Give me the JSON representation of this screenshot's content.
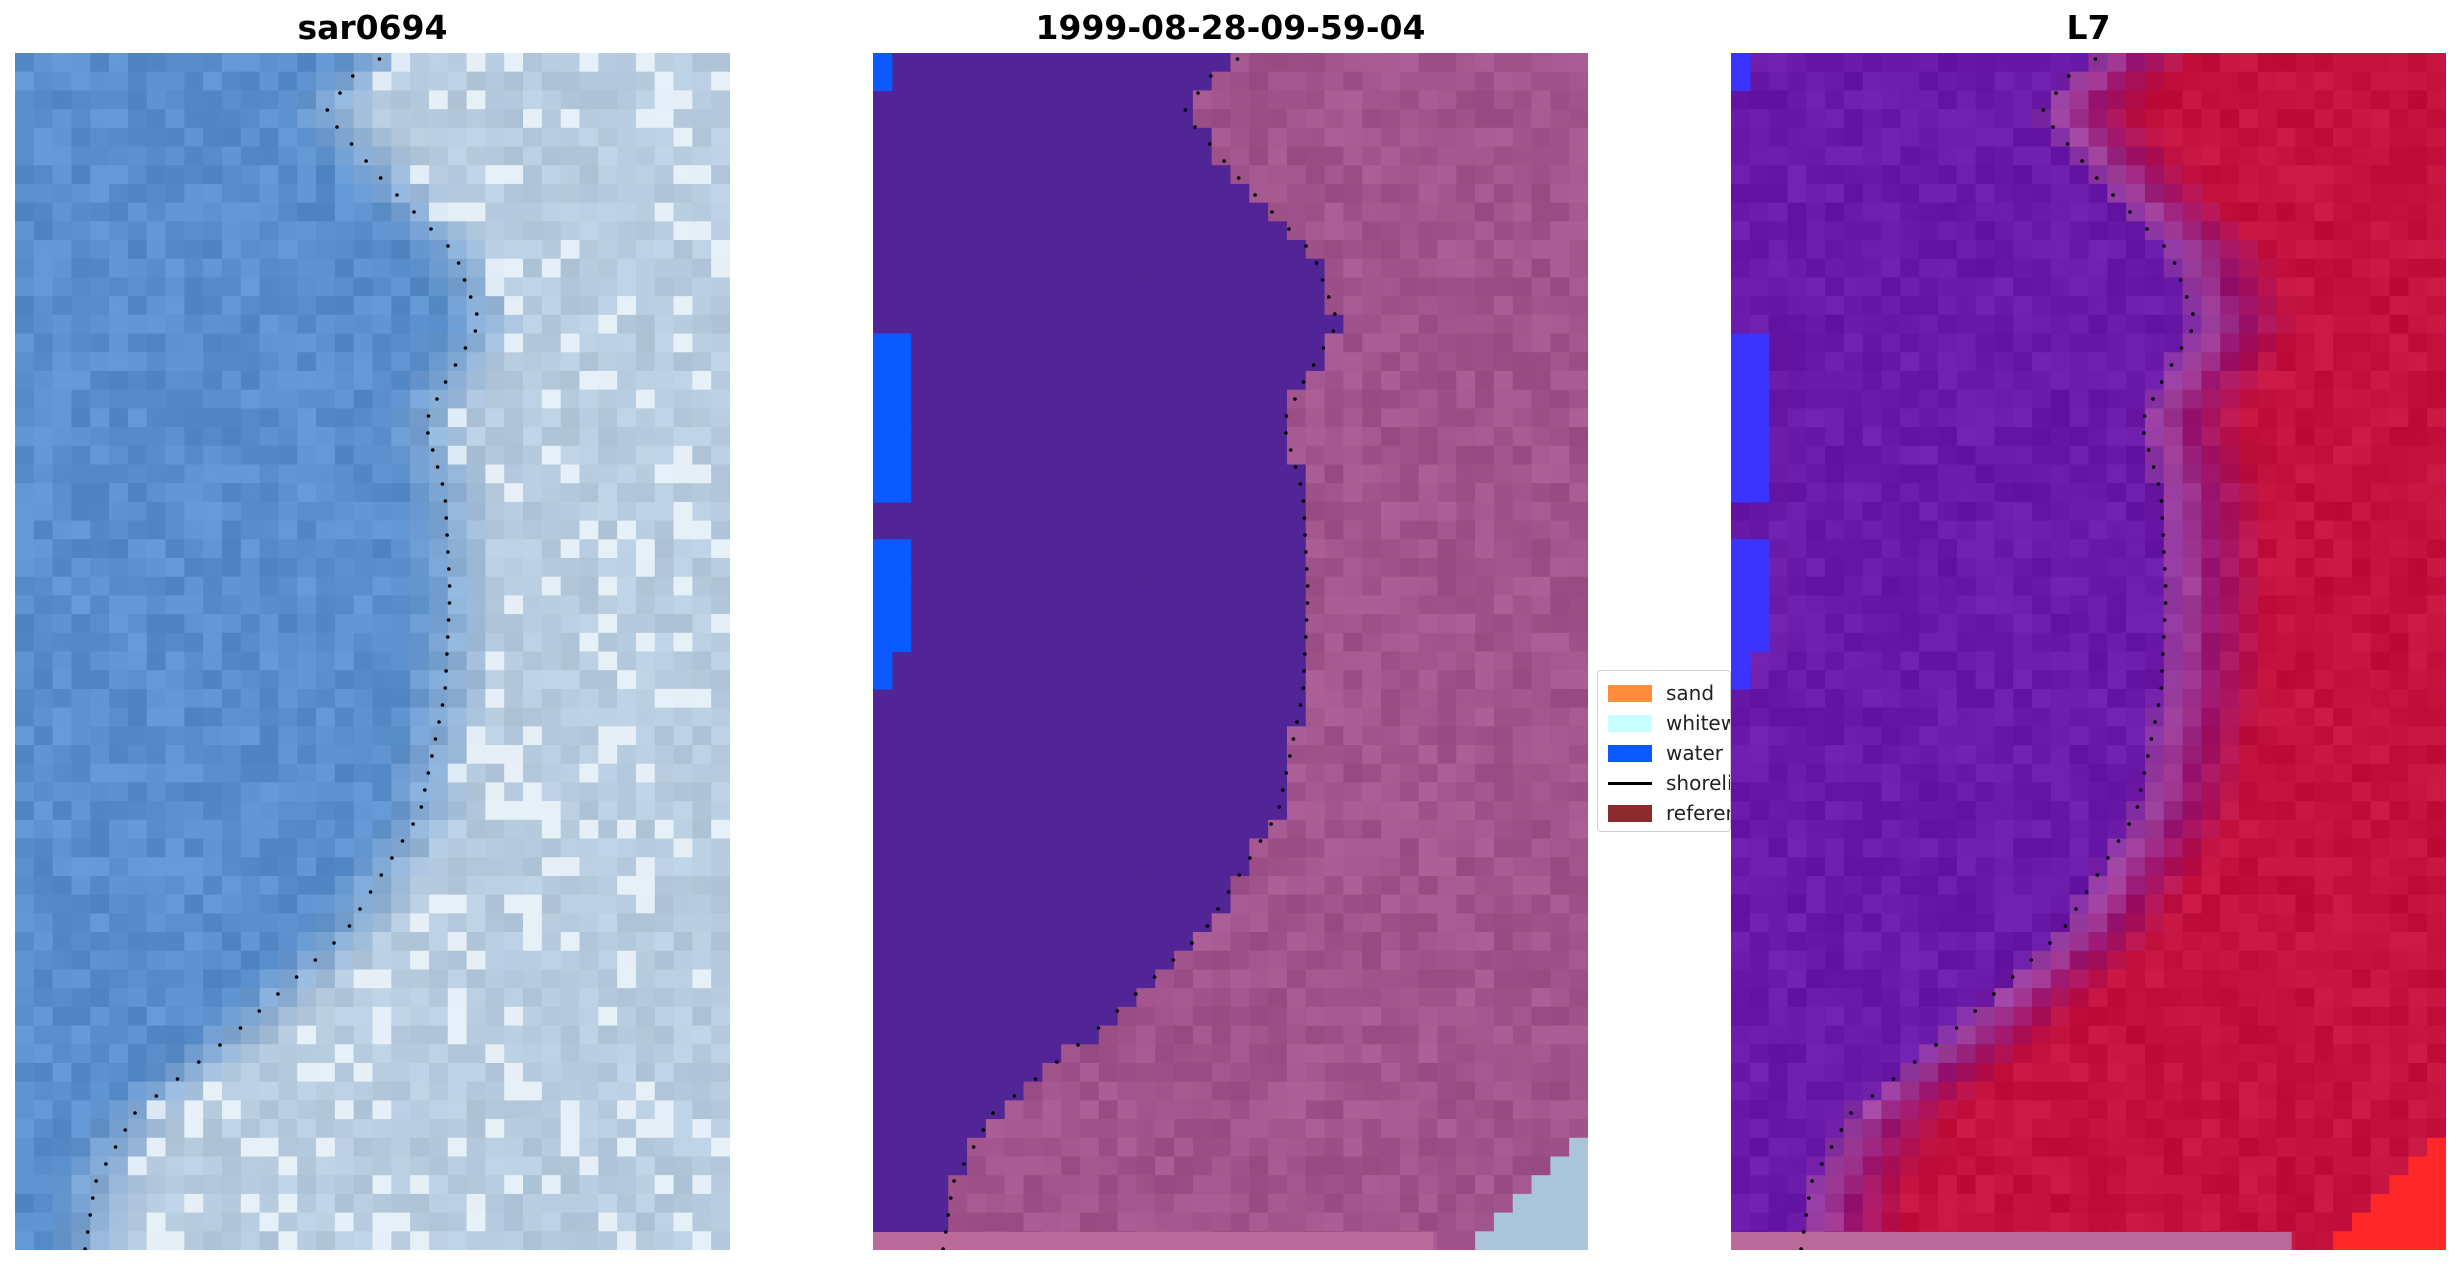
{
  "panels": [
    {
      "title": "sar0694"
    },
    {
      "title": "1999-08-28-09-59-04"
    },
    {
      "title": "L7"
    }
  ],
  "legend": {
    "items": [
      {
        "label": "sand",
        "color": "#ff8c3c",
        "kind": "patch"
      },
      {
        "label": "whitewater",
        "color": "#c8ffff",
        "kind": "patch"
      },
      {
        "label": "water",
        "color": "#0a5aff",
        "kind": "patch"
      },
      {
        "label": "shoreline",
        "color": "#000000",
        "kind": "line"
      },
      {
        "label": "reference",
        "color": "#8b2a2a",
        "kind": "patch"
      }
    ]
  },
  "colors": {
    "rgb_water": "#5a8fcc",
    "rgb_land": "#b9cde0",
    "class_water_mask": "#522596",
    "class_land": "#a2558c",
    "class_water_pixels": "#0a5aff",
    "index_water": "#6a1aa8",
    "index_land": "#c4123f",
    "index_blue": "#3a34ff",
    "bottom_strip": "#b96a9a"
  }
}
